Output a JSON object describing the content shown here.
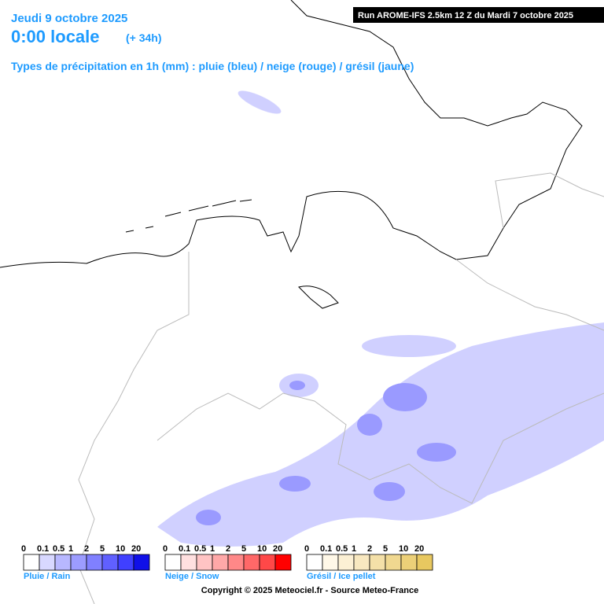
{
  "header": {
    "date": "Jeudi 9 octobre 2025",
    "time": "0:00 locale",
    "lead": "(+ 34h)",
    "subtitle": "Types de précipitation en 1h (mm) : pluie (bleu) / neige (rouge) / grésil (jaune)",
    "run": "Run AROME-IFS 2.5km 12 Z du Mardi 7 octobre 2025"
  },
  "legends": [
    {
      "label": "Pluie / Rain",
      "ticks": [
        "0",
        "0.1",
        "0.5",
        "1",
        "2",
        "5",
        "10",
        "20"
      ],
      "colors": [
        "#ffffff",
        "#d8d8ff",
        "#b8b8ff",
        "#9c9cff",
        "#8080ff",
        "#6060ff",
        "#4040ff",
        "#1010e8"
      ]
    },
    {
      "label": "Neige / Snow",
      "ticks": [
        "0",
        "0.1",
        "0.5",
        "1",
        "2",
        "5",
        "10",
        "20"
      ],
      "colors": [
        "#ffffff",
        "#ffe0e0",
        "#ffc4c4",
        "#ffa8a8",
        "#ff8888",
        "#ff6868",
        "#ff4848",
        "#ff0000"
      ]
    },
    {
      "label": "Grésil / Ice pellet",
      "ticks": [
        "0",
        "0.1",
        "0.5",
        "1",
        "2",
        "5",
        "10",
        "20"
      ],
      "colors": [
        "#ffffff",
        "#fff8e8",
        "#fcf0d4",
        "#f8e8c0",
        "#f4e0a8",
        "#f0d890",
        "#ecd078",
        "#e8c860"
      ]
    }
  ],
  "footer": {
    "copyright": "Copyright © 2025 Meteociel.fr - Source Meteo-France"
  }
}
